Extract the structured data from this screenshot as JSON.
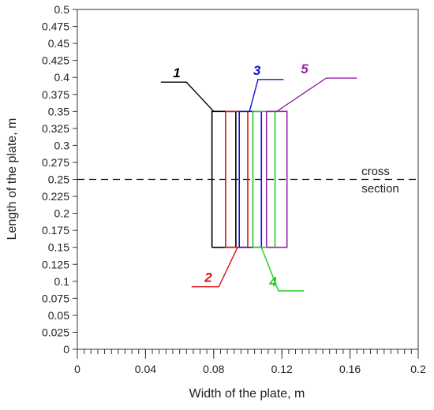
{
  "chart_data": {
    "type": "line",
    "title": "",
    "xlabel": "Width of the plate, m",
    "ylabel": "Length of the plate, m",
    "xlim": [
      0,
      0.2
    ],
    "ylim": [
      0,
      0.5
    ],
    "x_ticks": [
      "0",
      "0.04",
      "0.08",
      "0.12",
      "0.16",
      "0.2"
    ],
    "x_tick_values": [
      0,
      0.04,
      0.08,
      0.12,
      0.16,
      0.2
    ],
    "x_minor_step": 0.004,
    "y_ticks": [
      "0",
      "0.025",
      "0.05",
      "0.075",
      "0.1",
      "0.125",
      "0.15",
      "0.175",
      "0.2",
      "0.225",
      "0.25",
      "0.275",
      "0.3",
      "0.325",
      "0.35",
      "0.375",
      "0.4",
      "0.425",
      "0.45",
      "0.475",
      "0.5"
    ],
    "y_tick_values": [
      0,
      0.025,
      0.05,
      0.075,
      0.1,
      0.125,
      0.15,
      0.175,
      0.2,
      0.225,
      0.25,
      0.275,
      0.3,
      0.325,
      0.35,
      0.375,
      0.4,
      0.425,
      0.45,
      0.475,
      0.5
    ],
    "grid": false,
    "series": [
      {
        "label": "1",
        "color": "#000000",
        "x": [
          0.079,
          0.093,
          0.093,
          0.079,
          0.079
        ],
        "y": [
          0.15,
          0.15,
          0.35,
          0.35,
          0.15
        ],
        "callout_x": [
          0.049,
          0.064,
          0.08
        ],
        "callout_y": [
          0.393,
          0.393,
          0.35
        ]
      },
      {
        "label": "2",
        "color": "#dd1111",
        "x": [
          0.087,
          0.1,
          0.1,
          0.087,
          0.087
        ],
        "y": [
          0.15,
          0.15,
          0.35,
          0.35,
          0.15
        ],
        "callout_x": [
          0.067,
          0.083,
          0.094
        ],
        "callout_y": [
          0.092,
          0.092,
          0.15
        ]
      },
      {
        "label": "3",
        "color": "#1111cc",
        "x": [
          0.095,
          0.108,
          0.108,
          0.095,
          0.095
        ],
        "y": [
          0.15,
          0.15,
          0.35,
          0.35,
          0.15
        ],
        "callout_x": [
          0.101,
          0.106,
          0.121
        ],
        "callout_y": [
          0.35,
          0.397,
          0.397
        ]
      },
      {
        "label": "4",
        "color": "#22cc22",
        "x": [
          0.103,
          0.116,
          0.116,
          0.103,
          0.103
        ],
        "y": [
          0.15,
          0.15,
          0.35,
          0.35,
          0.15
        ],
        "callout_x": [
          0.108,
          0.118,
          0.133
        ],
        "callout_y": [
          0.15,
          0.086,
          0.086
        ]
      },
      {
        "label": "5",
        "color": "#9922aa",
        "x": [
          0.111,
          0.123,
          0.123,
          0.111,
          0.111
        ],
        "y": [
          0.15,
          0.15,
          0.35,
          0.35,
          0.15
        ],
        "callout_x": [
          0.117,
          0.146,
          0.164
        ],
        "callout_y": [
          0.35,
          0.399,
          0.399
        ]
      }
    ],
    "cross_section": {
      "y": 0.25,
      "color": "#000000"
    },
    "annotations": [
      "cross",
      "section"
    ]
  }
}
